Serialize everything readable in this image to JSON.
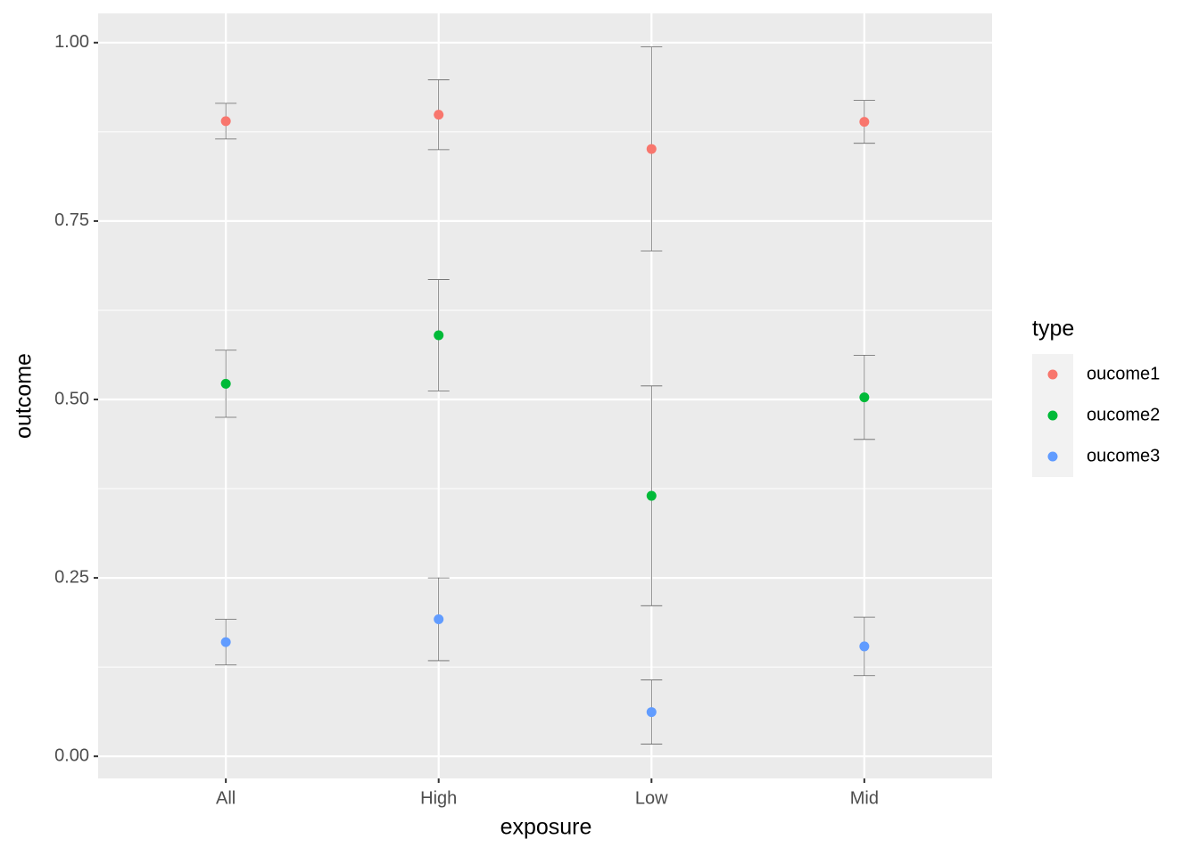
{
  "chart_data": {
    "type": "errorbar-scatter",
    "x_label": "exposure",
    "y_label": "outcome",
    "categories": [
      "All",
      "High",
      "Low",
      "Mid"
    ],
    "legend_title": "type",
    "legend_position": "right",
    "ylim": [
      -0.031,
      1.041
    ],
    "yticks": [
      {
        "value": 0,
        "label": "0.00"
      },
      {
        "value": 0.25,
        "label": "0.25"
      },
      {
        "value": 0.5,
        "label": "0.50"
      },
      {
        "value": 0.75,
        "label": "0.75"
      },
      {
        "value": 1,
        "label": "1.00"
      }
    ],
    "grid": true,
    "series": [
      {
        "name": "oucome1",
        "color": "#F8766D",
        "values": [
          0.89,
          0.899,
          0.851,
          0.889
        ],
        "errors": [
          0.025,
          0.049,
          0.143,
          0.03
        ]
      },
      {
        "name": "oucome2",
        "color": "#00BA38",
        "values": [
          0.522,
          0.59,
          0.365,
          0.503
        ],
        "errors": [
          0.047,
          0.078,
          0.154,
          0.059
        ]
      },
      {
        "name": "oucome3",
        "color": "#619CFF",
        "values": [
          0.16,
          0.192,
          0.062,
          0.154
        ],
        "errors": [
          0.032,
          0.058,
          0.045,
          0.041
        ]
      }
    ]
  }
}
